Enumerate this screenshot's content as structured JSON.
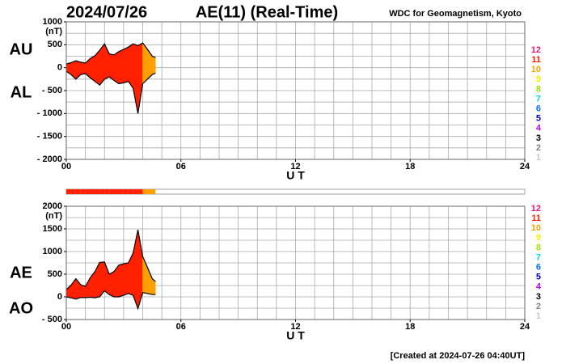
{
  "header": {
    "date": "2024/07/26",
    "title": "AE(11) (Real-Time)",
    "source": "WDC for Geomagnetism, Kyoto"
  },
  "footer": "[Created at 2024-07-26 04:40UT]",
  "stations_legend": {
    "labels": [
      12,
      11,
      10,
      9,
      8,
      7,
      6,
      5,
      4,
      3,
      2,
      1
    ],
    "colors": [
      "#e8187a",
      "#ff2000",
      "#ffa000",
      "#f0f000",
      "#a0e000",
      "#00d8e0",
      "#0070ff",
      "#0000c0",
      "#c000ff",
      "#000000",
      "#808080",
      "#c8c8c8"
    ]
  },
  "chart_data": [
    {
      "type": "band",
      "unit": "(nT)",
      "xlabel": "U T",
      "x": [
        0,
        0.25,
        0.5,
        0.75,
        1,
        1.25,
        1.5,
        1.75,
        2,
        2.25,
        2.5,
        2.75,
        3,
        3.25,
        3.5,
        3.75,
        4,
        4.25,
        4.5,
        4.67
      ],
      "stations": [
        11,
        11,
        11,
        11,
        11,
        11,
        11,
        11,
        11,
        11,
        11,
        11,
        11,
        11,
        11,
        11,
        10,
        10,
        10,
        10
      ],
      "series": [
        {
          "name": "AU",
          "values": [
            80,
            110,
            150,
            120,
            100,
            200,
            260,
            380,
            520,
            300,
            280,
            350,
            400,
            450,
            520,
            480,
            540,
            400,
            250,
            220
          ]
        },
        {
          "name": "AL",
          "values": [
            -80,
            -150,
            -250,
            -150,
            -130,
            -220,
            -300,
            -380,
            -250,
            -200,
            -280,
            -350,
            -330,
            -300,
            -450,
            -1000,
            -350,
            -250,
            -150,
            -120
          ]
        }
      ],
      "xlim": [
        0,
        24
      ],
      "xticks": [
        {
          "value": 0,
          "label": "00"
        },
        {
          "value": 6,
          "label": "06"
        },
        12,
        18,
        24
      ],
      "ylim": [
        -2000,
        1000
      ],
      "yticks": [
        {
          "value": -2000,
          "label": "- 2000"
        },
        {
          "value": -1500,
          "label": "- 1500"
        },
        {
          "value": -1000,
          "label": "- 1000"
        },
        {
          "value": -500,
          "label": "- 500"
        },
        0,
        500,
        1000
      ],
      "grid_interval": 250,
      "xgrid_interval": 1
    },
    {
      "type": "band",
      "unit": "(nT)",
      "xlabel": "U T",
      "x": [
        0,
        0.25,
        0.5,
        0.75,
        1,
        1.25,
        1.5,
        1.75,
        2,
        2.25,
        2.5,
        2.75,
        3,
        3.25,
        3.5,
        3.75,
        4,
        4.25,
        4.5,
        4.67
      ],
      "stations": [
        11,
        11,
        11,
        11,
        11,
        11,
        11,
        11,
        11,
        11,
        11,
        11,
        11,
        11,
        11,
        11,
        10,
        10,
        10,
        10
      ],
      "series": [
        {
          "name": "AE",
          "values": [
            160,
            260,
            400,
            270,
            230,
            420,
            560,
            760,
            770,
            500,
            560,
            700,
            730,
            750,
            970,
            1480,
            890,
            650,
            400,
            340
          ]
        },
        {
          "name": "AO",
          "values": [
            0,
            -20,
            -50,
            -15,
            -15,
            -10,
            -20,
            0,
            135,
            50,
            0,
            0,
            35,
            75,
            35,
            -260,
            95,
            75,
            50,
            50
          ]
        }
      ],
      "xlim": [
        0,
        24
      ],
      "xticks": [
        {
          "value": 0,
          "label": "00"
        },
        {
          "value": 6,
          "label": "06"
        },
        12,
        18,
        24
      ],
      "ylim": [
        -500,
        2000
      ],
      "yticks": [
        {
          "value": -500,
          "label": "- 500"
        },
        0,
        500,
        1000,
        1500,
        2000
      ],
      "grid_interval": 250,
      "xgrid_interval": 1
    }
  ]
}
